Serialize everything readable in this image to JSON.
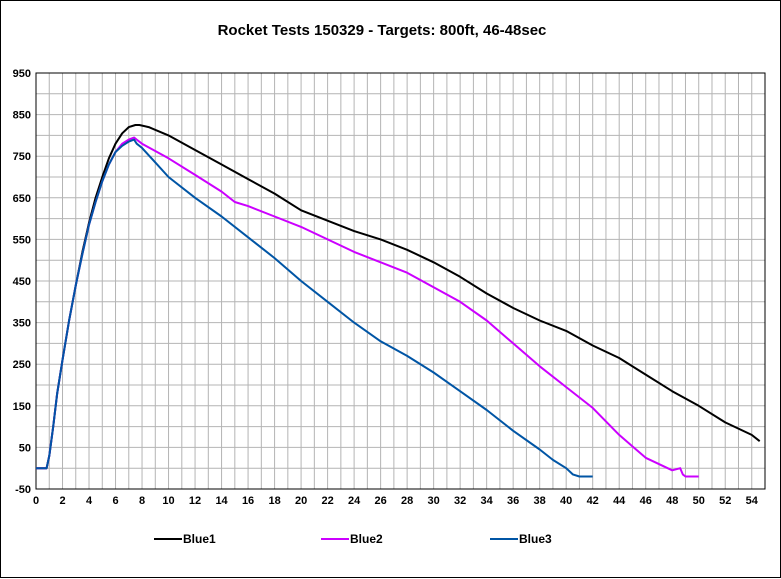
{
  "chart_data": {
    "type": "line",
    "title": "Rocket Tests 150329 - Targets: 800ft, 46-48sec",
    "xlabel": "",
    "ylabel": "",
    "xlim": [
      0,
      55
    ],
    "ylim": [
      -50,
      950
    ],
    "x_ticks": [
      0,
      2,
      4,
      6,
      8,
      10,
      12,
      14,
      16,
      18,
      20,
      22,
      24,
      26,
      28,
      30,
      32,
      34,
      36,
      38,
      40,
      42,
      44,
      46,
      48,
      50,
      52,
      54
    ],
    "y_ticks": [
      -50,
      50,
      150,
      250,
      350,
      450,
      550,
      650,
      750,
      850,
      950
    ],
    "x_minor_step": 1,
    "y_minor_step": 50,
    "grid": true,
    "legend_position": "bottom",
    "series": [
      {
        "name": "Blue1",
        "color": "#000000",
        "x": [
          0,
          0.8,
          1.0,
          1.3,
          1.6,
          2.0,
          2.5,
          3.0,
          3.5,
          4.0,
          4.5,
          5.0,
          5.5,
          6.0,
          6.5,
          7.0,
          7.5,
          7.8,
          8.5,
          10,
          12,
          14,
          16,
          18,
          20,
          22,
          24,
          26,
          28,
          30,
          32,
          34,
          36,
          38,
          40,
          42,
          44,
          46,
          48,
          50,
          52,
          54,
          54.6
        ],
        "y": [
          0,
          0,
          30,
          100,
          180,
          260,
          355,
          440,
          520,
          590,
          650,
          700,
          745,
          780,
          805,
          820,
          825,
          825,
          820,
          800,
          765,
          730,
          695,
          660,
          620,
          595,
          570,
          550,
          525,
          495,
          460,
          420,
          385,
          355,
          330,
          295,
          265,
          225,
          185,
          150,
          110,
          80,
          65
        ]
      },
      {
        "name": "Blue2",
        "color": "#cc00ff",
        "x": [
          0,
          0.8,
          1.0,
          1.3,
          1.6,
          2.0,
          2.5,
          3.0,
          3.5,
          4.0,
          4.5,
          5.0,
          5.5,
          6.0,
          6.5,
          7.0,
          7.4,
          7.6,
          8.0,
          10,
          12,
          14,
          15,
          16,
          18,
          20,
          22,
          24,
          26,
          28,
          30,
          32,
          34,
          36,
          38,
          40,
          42,
          44,
          46,
          48,
          48.6,
          48.8,
          49,
          50
        ],
        "y": [
          0,
          0,
          30,
          100,
          180,
          260,
          355,
          440,
          515,
          585,
          640,
          690,
          730,
          760,
          780,
          790,
          795,
          790,
          780,
          745,
          705,
          665,
          640,
          630,
          605,
          580,
          550,
          520,
          495,
          470,
          435,
          400,
          355,
          300,
          245,
          195,
          145,
          80,
          25,
          -5,
          0,
          -15,
          -20,
          -20
        ]
      },
      {
        "name": "Blue3",
        "color": "#0055a5",
        "x": [
          0,
          0.8,
          1.0,
          1.3,
          1.6,
          2.0,
          2.5,
          3.0,
          3.5,
          4.0,
          4.5,
          5.0,
          5.5,
          6.0,
          6.5,
          7.0,
          7.4,
          7.6,
          8.0,
          9,
          10,
          12,
          14,
          16,
          18,
          20,
          22,
          24,
          26,
          28,
          30,
          32,
          34,
          36,
          38,
          39,
          40,
          40.5,
          41,
          42
        ],
        "y": [
          0,
          0,
          30,
          100,
          180,
          260,
          355,
          440,
          515,
          585,
          640,
          690,
          730,
          760,
          775,
          785,
          790,
          780,
          770,
          735,
          700,
          650,
          605,
          555,
          505,
          450,
          400,
          350,
          305,
          270,
          230,
          185,
          140,
          90,
          45,
          20,
          0,
          -15,
          -20,
          -20
        ]
      }
    ]
  }
}
